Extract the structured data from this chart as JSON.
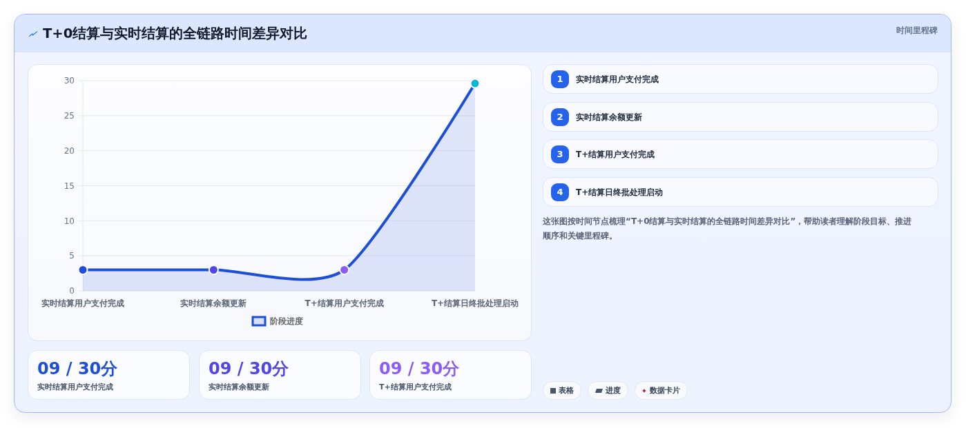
{
  "chart_data": {
    "type": "area",
    "title": "T+0结算与实时结算的全链路时间差异对比",
    "subtitle": "时间里程碑",
    "categories": [
      "实时结算用户支付完成",
      "实时结算余额更新",
      "T+结算用户支付完成",
      "T+结算日终批处理启动"
    ],
    "series": [
      {
        "name": "阶段进度",
        "color": "#1d4ed8",
        "values": [
          3,
          3,
          3,
          29.6
        ]
      }
    ],
    "colors": [
      "#1d4ed8",
      "#4f46e5",
      "#8b5cf6",
      "#06b6d4"
    ],
    "ylim": [
      0,
      30
    ],
    "yticks": [
      0,
      5,
      10,
      15,
      20,
      25,
      30
    ],
    "grid": "y",
    "legend": "bottom",
    "marker": "circle",
    "annotations": [
      "这张图按时间节点梳理“T+0结算与实时结算的全链路时间差异对比”，帮助读者理解阶段目标、推进顺序和关键里程碑。",
      "表格",
      "进度",
      "数据卡片",
      "09 / 30分",
      "09 / 30分",
      "09 / 30分",
      "1",
      "2",
      "3",
      "4"
    ]
  }
}
